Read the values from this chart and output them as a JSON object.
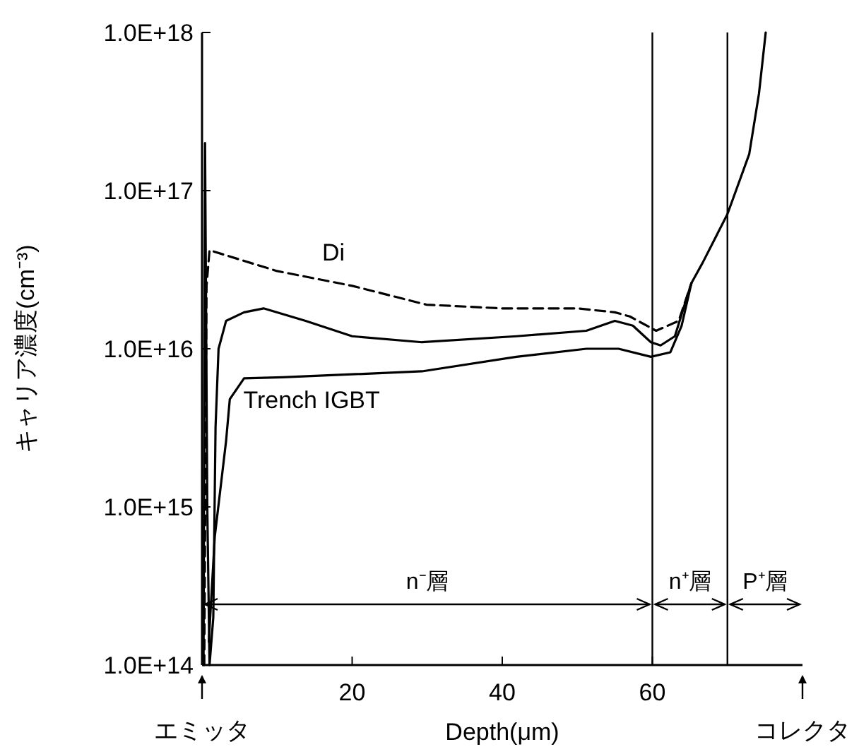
{
  "chart_data": {
    "type": "line",
    "xlabel": "Depth(μm)",
    "ylabel": "キャリア濃度(cm⁻³)",
    "log": "y",
    "grid": false,
    "legend": false,
    "marker": "none",
    "xlim": [
      0,
      80
    ],
    "xticks": [
      20,
      40,
      60
    ],
    "ylim": [
      100000000000000.0,
      1e+18
    ],
    "yticks": [
      {
        "value": 100000000000000.0,
        "label": "1.0E+14"
      },
      {
        "value": 1000000000000000.0,
        "label": "1.0E+15"
      },
      {
        "value": 1e+16,
        "label": "1.0E+16"
      },
      {
        "value": 1e+17,
        "label": "1.0E+17"
      },
      {
        "value": 1e+18,
        "label": "1.0E+18"
      }
    ],
    "series": [
      {
        "name": "Di",
        "color": "#000000",
        "line_style": "dashed",
        "x": [
          0.3,
          0.6,
          1.0,
          10,
          20,
          29.9,
          40,
          50,
          55,
          57,
          60.5,
          63.5,
          65.2
        ],
        "values": [
          100000000000000.0,
          2.5e+16,
          4.2e+16,
          3.1e+16,
          2.5e+16,
          1.9e+16,
          1.8e+16,
          1.8e+16,
          1.7e+16,
          1.6e+16,
          1.3e+16,
          1.5e+16,
          2.6e+16
        ]
      },
      {
        "color": "#000000",
        "line_style": "solid",
        "x": [
          0.2,
          0.4,
          0.7,
          1.0,
          1.5,
          1.8,
          2.2,
          3.2,
          5.6,
          8.2,
          13.8,
          20,
          29.3,
          41.9,
          51.2,
          55,
          57.4,
          59.8,
          61.1,
          63,
          64.3,
          65.2,
          66.7,
          70,
          72.9,
          74.2,
          75.1
        ],
        "values": [
          100000000000000.0,
          2e+17,
          1000000000000000.0,
          100000000000000.0,
          200000000000000.0,
          3200000000000000.0,
          1e+16,
          1.5e+16,
          1.7e+16,
          1.8e+16,
          1.5e+16,
          1.2e+16,
          1.1e+16,
          1.2e+16,
          1.3e+16,
          1.5e+16,
          1.4e+16,
          1.1e+16,
          1.05e+16,
          1.2e+16,
          1.9e+16,
          2.6e+16,
          3.5e+16,
          7.1e+16,
          1.7e+17,
          4.1e+17,
          1e+18
        ]
      },
      {
        "name": "Trench IGBT",
        "color": "#000000",
        "line_style": "solid",
        "x": [
          0.9,
          1.7,
          3.2,
          3.7,
          5.6,
          10.7,
          29.3,
          41.9,
          51.2,
          55.5,
          59.8,
          62.4,
          63.9,
          65.2
        ],
        "values": [
          140000000000000.0,
          650000000000000.0,
          2600000000000000.0,
          4800000000000000.0,
          6500000000000000.0,
          6600000000000000.0,
          7200000000000000.0,
          8900000000000000.0,
          1e+16,
          1e+16,
          8900000000000000.0,
          9500000000000000.0,
          1.4e+16,
          2.6e+16
        ]
      }
    ],
    "ref_lines": [
      {
        "axis": "x",
        "value": 60
      },
      {
        "axis": "x",
        "value": 70
      }
    ],
    "annotations": [
      "n⁻層",
      "n⁺層",
      "P⁺層",
      "エミッタ",
      "コレクタ"
    ]
  }
}
